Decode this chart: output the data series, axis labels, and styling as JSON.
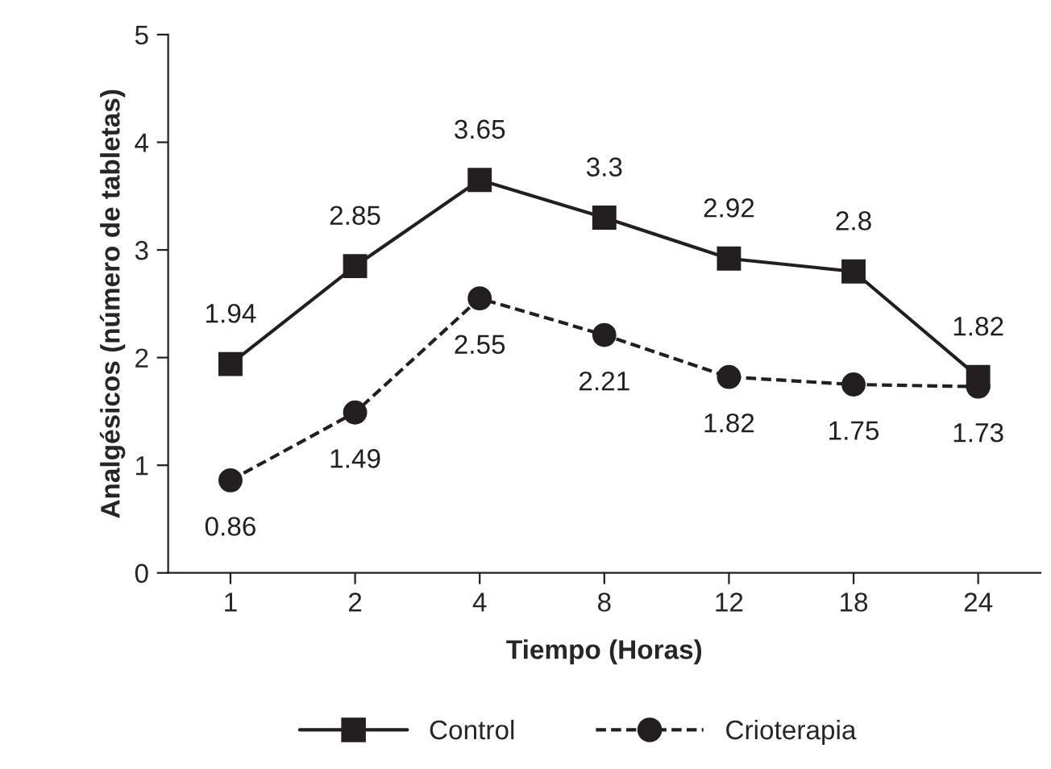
{
  "chart_data": {
    "type": "line",
    "xlabel": "Tiempo (Horas)",
    "ylabel": "Analgésicos (número de tabletas)",
    "categories": [
      "1",
      "2",
      "4",
      "8",
      "12",
      "18",
      "24"
    ],
    "series": [
      {
        "name": "Control",
        "color": "#231f20",
        "marker": "square",
        "line_style": "solid",
        "values": [
          1.94,
          2.85,
          3.65,
          3.3,
          2.92,
          2.8,
          1.82
        ]
      },
      {
        "name": "Crioterapia",
        "color": "#231f20",
        "marker": "circle",
        "line_style": "dashed",
        "values": [
          0.86,
          1.49,
          2.55,
          2.21,
          1.82,
          1.75,
          1.73
        ]
      }
    ],
    "ylim": [
      0,
      5
    ],
    "yticks": [
      0,
      1,
      2,
      3,
      4,
      5
    ],
    "grid": false,
    "legend": "bottom",
    "data_labels": true
  }
}
